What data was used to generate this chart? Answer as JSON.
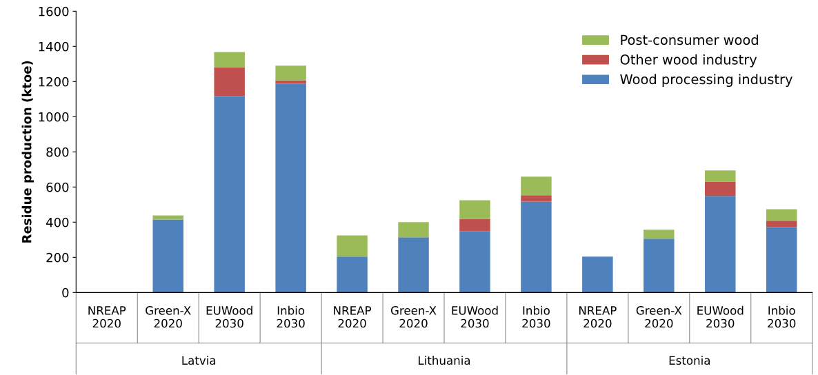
{
  "chart_data": {
    "type": "bar",
    "stacked": true,
    "ylabel": "Residue production (ktoe)",
    "categories": [
      "NREAP\n2020",
      "Green-X\n2020",
      "EUWood\n2030",
      "Inbio\n2030",
      "NREAP\n2020",
      "Green-X\n2020",
      "EUWood\n2030",
      "Inbio\n2030",
      "NREAP\n2020",
      "Green-X\n2020",
      "EUWood\n2030",
      "Inbio\n2030"
    ],
    "series": [
      {
        "name": "Wood processing industry",
        "color": "#4f81bd",
        "values": [
          0,
          415,
          1117,
          1188,
          204,
          314,
          349,
          517,
          204,
          306,
          549,
          372
        ]
      },
      {
        "name": "Other wood industry",
        "color": "#c0504d",
        "values": [
          0,
          0,
          165,
          19,
          0,
          0,
          70,
          36,
          0,
          0,
          82,
          36
        ]
      },
      {
        "name": "Post-consumer wood",
        "color": "#9bbb59",
        "values": [
          0,
          24,
          86,
          83,
          121,
          86,
          106,
          106,
          0,
          51,
          63,
          66
        ]
      }
    ],
    "annotations": [
      "Latvia",
      "Lithuania",
      "Estonia"
    ],
    "ylim": [
      0,
      1600
    ],
    "yticks": [
      0,
      200,
      400,
      600,
      800,
      1000,
      1200,
      1400,
      1600
    ],
    "grid": false,
    "legend": "top right"
  }
}
